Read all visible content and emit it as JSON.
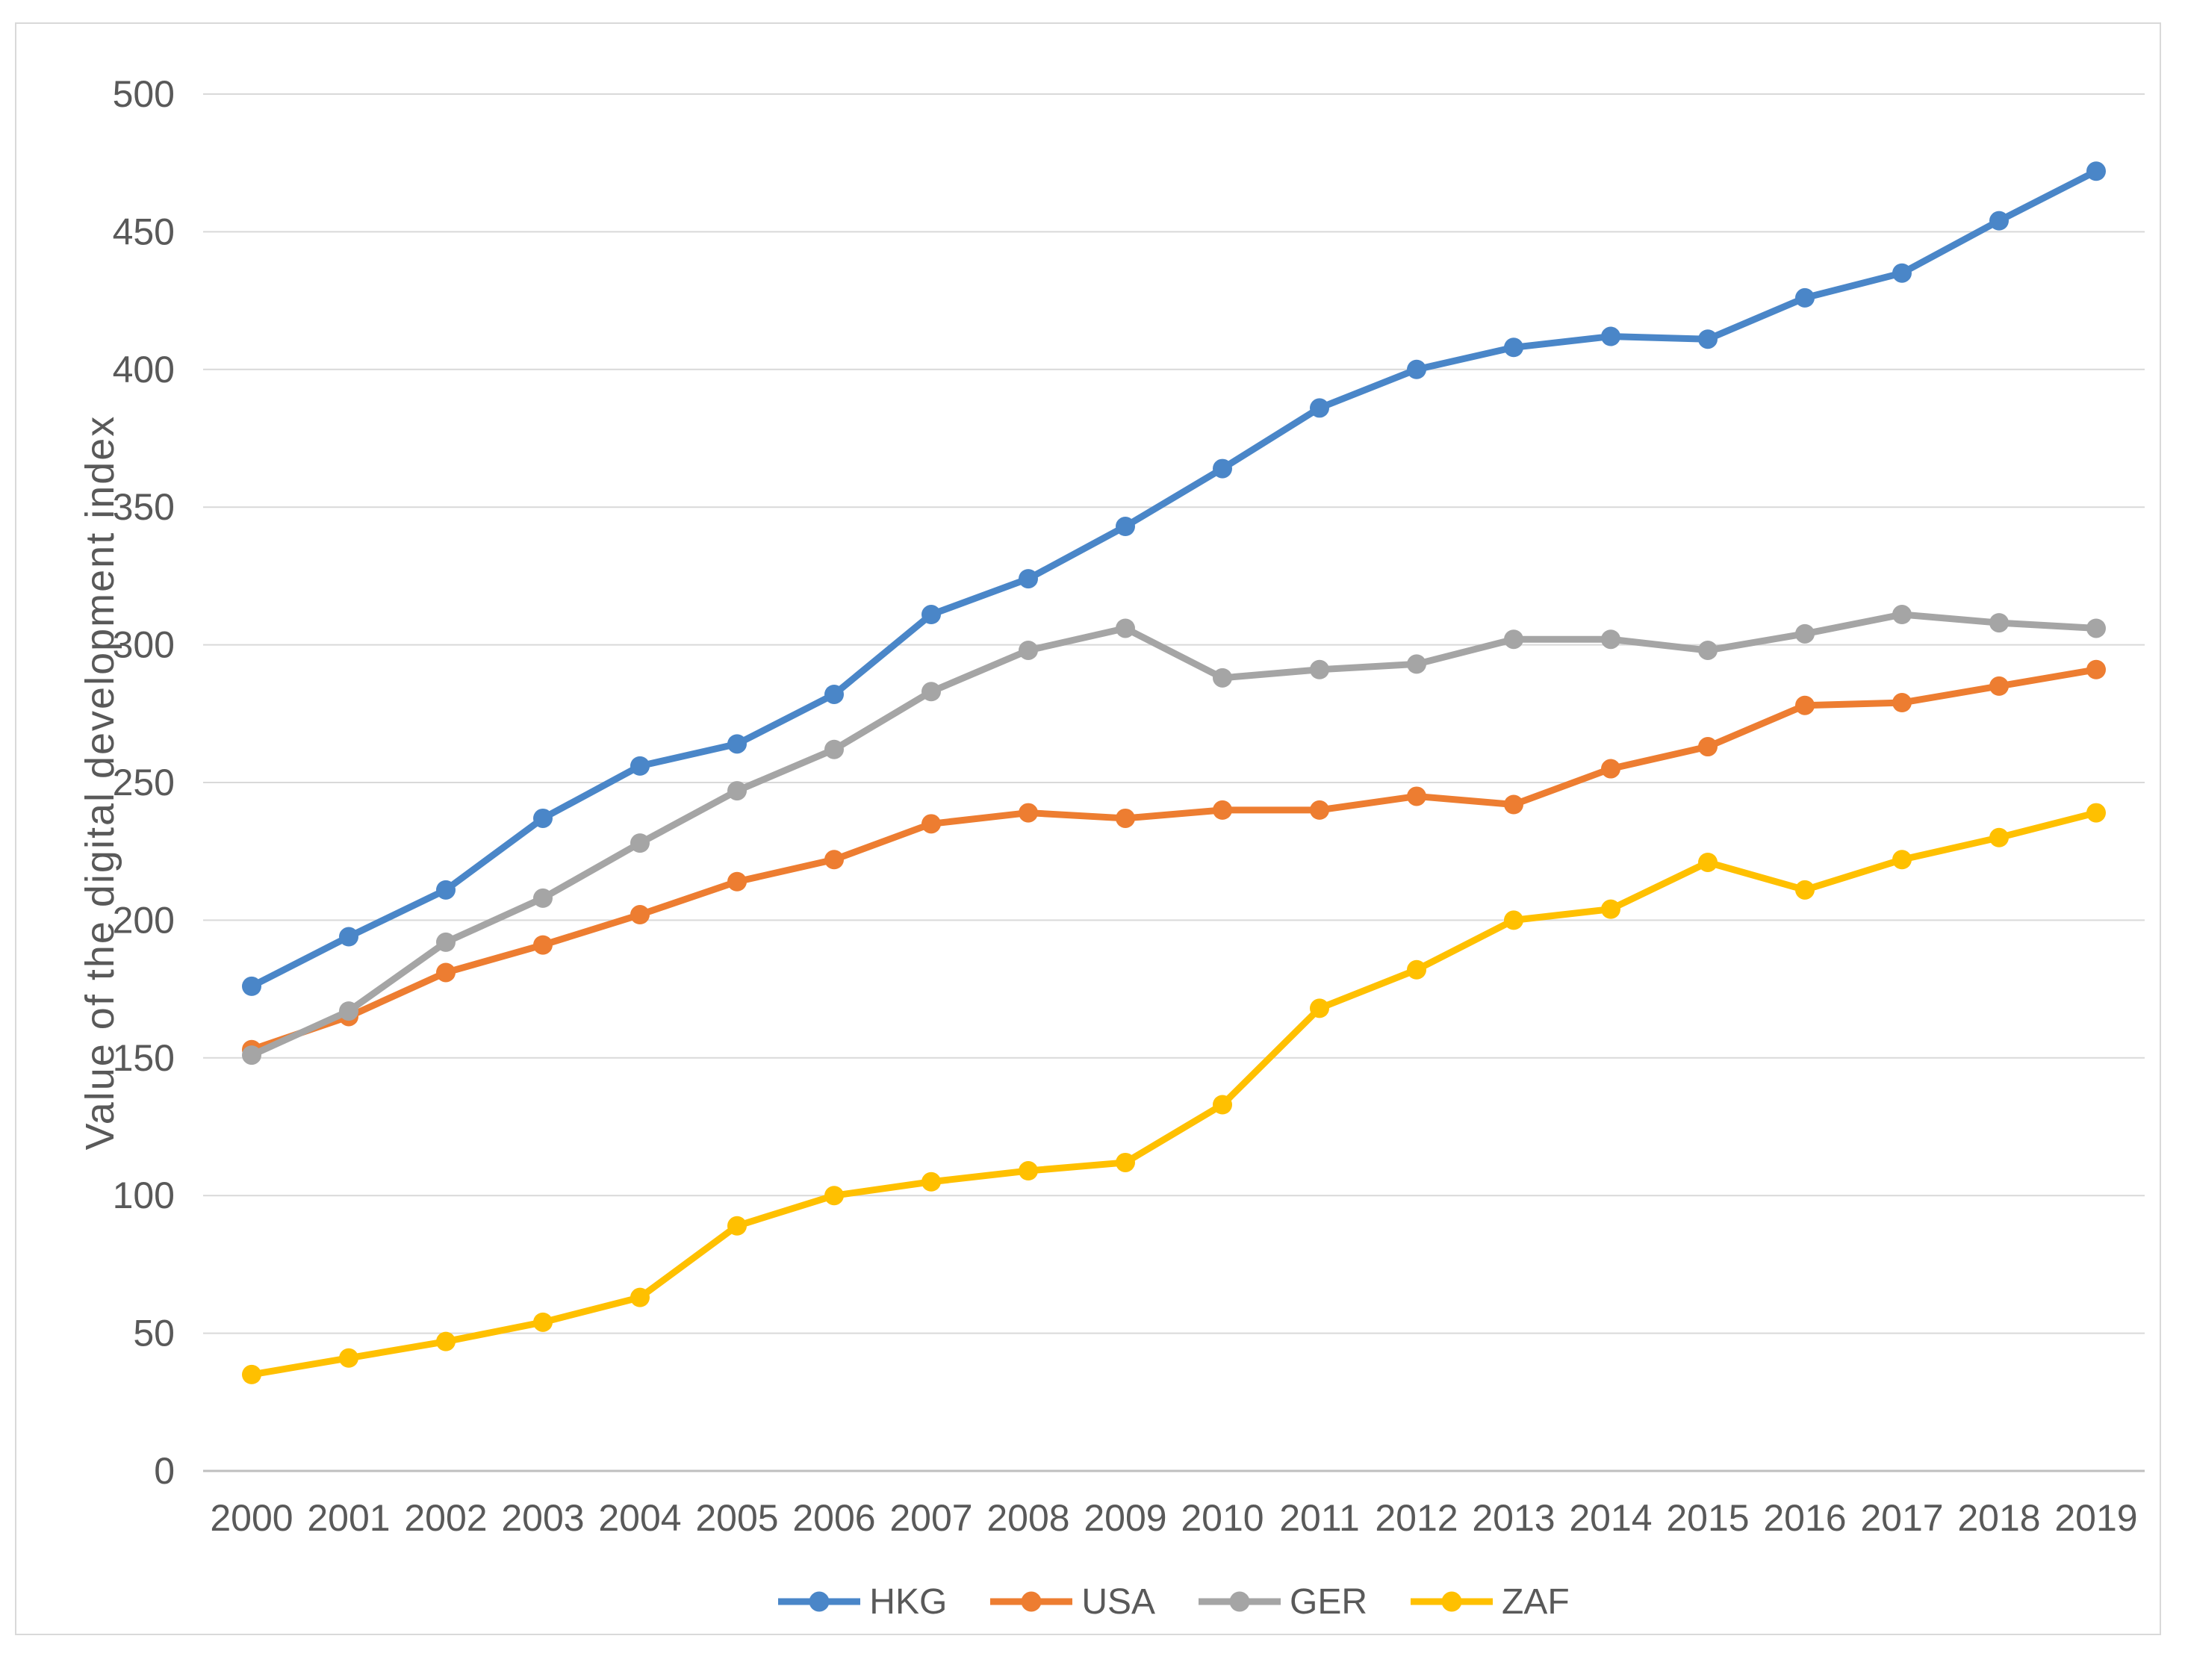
{
  "chart_data": {
    "type": "line",
    "title": "",
    "xlabel": "",
    "ylabel": "Value of the digital development index",
    "ylim": [
      0,
      500
    ],
    "ytick_step": 50,
    "grid": true,
    "legend_position": "bottom",
    "categories": [
      "2000",
      "2001",
      "2002",
      "2003",
      "2004",
      "2005",
      "2006",
      "2007",
      "2008",
      "2009",
      "2010",
      "2011",
      "2012",
      "2013",
      "2014",
      "2015",
      "2016",
      "2017",
      "2018",
      "2019"
    ],
    "series": [
      {
        "name": "HKG",
        "color": "#4A86C8",
        "values": [
          176,
          194,
          211,
          237,
          256,
          264,
          282,
          311,
          324,
          343,
          364,
          386,
          400,
          408,
          412,
          411,
          426,
          435,
          454,
          472
        ]
      },
      {
        "name": "USA",
        "color": "#ED7D31",
        "values": [
          153,
          165,
          181,
          191,
          202,
          214,
          222,
          235,
          239,
          237,
          240,
          240,
          245,
          242,
          255,
          263,
          278,
          279,
          285,
          291
        ]
      },
      {
        "name": "GER",
        "color": "#A5A5A5",
        "values": [
          151,
          167,
          192,
          208,
          228,
          247,
          262,
          283,
          298,
          306,
          288,
          291,
          293,
          302,
          302,
          298,
          304,
          311,
          308,
          306
        ]
      },
      {
        "name": "ZAF",
        "color": "#FFC000",
        "values": [
          35,
          41,
          47,
          54,
          63,
          89,
          100,
          105,
          109,
          112,
          133,
          168,
          182,
          200,
          204,
          221,
          211,
          222,
          230,
          239
        ]
      }
    ]
  },
  "colors": {
    "background": "#FFFFFF",
    "gridline": "#D9D9D9",
    "axis_line": "#BFBFBF",
    "tick_text": "#595959",
    "frame_border": "#D9D9D9"
  }
}
